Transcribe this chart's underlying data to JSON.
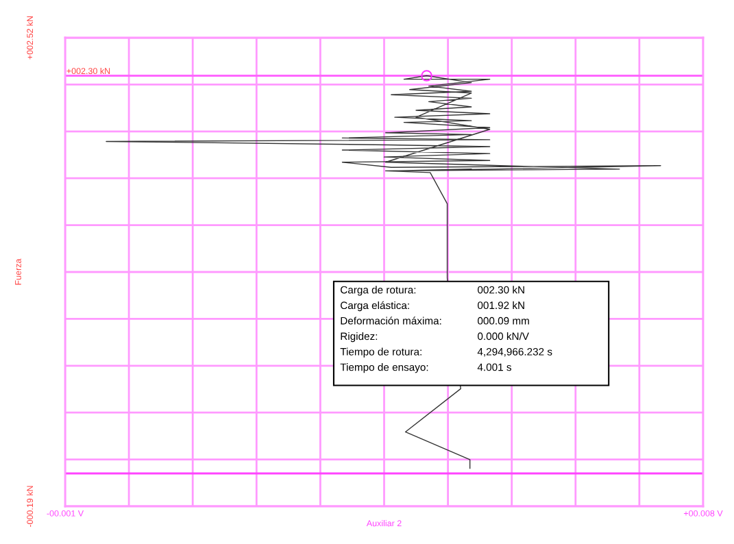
{
  "chart_data": {
    "type": "line",
    "xlabel": "Auxiliar 2",
    "ylabel": "Fuerza",
    "xlim": [
      -0.001,
      0.008
    ],
    "ylim": [
      -0.19,
      2.52
    ],
    "xticks": [
      {
        "value": -0.001,
        "label": "-00.001 V"
      },
      {
        "value": -0.0001,
        "label": null
      },
      {
        "value": 0.0008,
        "label": null
      },
      {
        "value": 0.0017,
        "label": null
      },
      {
        "value": 0.0026,
        "label": null
      },
      {
        "value": 0.0035,
        "label": null
      },
      {
        "value": 0.0044,
        "label": null
      },
      {
        "value": 0.0053,
        "label": null
      },
      {
        "value": 0.0062,
        "label": null
      },
      {
        "value": 0.0071,
        "label": null
      },
      {
        "value": 0.008,
        "label": "+00.008 V"
      }
    ],
    "yticks": [
      {
        "value": -0.19,
        "label": "-000.19 kN"
      },
      {
        "value": 0.081,
        "label": null
      },
      {
        "value": 0.352,
        "label": null
      },
      {
        "value": 0.623,
        "label": null
      },
      {
        "value": 0.894,
        "label": null
      },
      {
        "value": 1.165,
        "label": null
      },
      {
        "value": 1.436,
        "label": null
      },
      {
        "value": 1.707,
        "label": null
      },
      {
        "value": 1.978,
        "label": null
      },
      {
        "value": 2.249,
        "label": null
      },
      {
        "value": 2.52,
        "label": "+002.52 kN"
      }
    ],
    "grid": true,
    "marker": "none",
    "line_style": "solid",
    "series": [
      {
        "color": "#333333",
        "x": [
          0.00471,
          0.00471,
          0.0038,
          0.00458,
          0.00439,
          0.00439,
          0.00415,
          0.00352,
          0.00499,
          0.0074,
          0.0036,
          0.00291,
          0.00499,
          0.0035,
          0.00499,
          0.00291,
          0.00499,
          0.00356,
          -0.00042,
          0.00499,
          0.00291,
          0.00473,
          0.00352,
          0.00499,
          0.00378,
          0.00473,
          0.00365,
          0.00499,
          0.00395,
          0.00473,
          0.00413,
          0.00473,
          0.0036,
          0.00473,
          0.00413,
          0.00499,
          0.00378,
          0.0041,
          0.00473,
          0.00386,
          0.00473,
          0.00395,
          0.00499,
          0.00352,
          0.00682,
          0.0036,
          0.00473
        ],
        "values": [
          0.03,
          0.08,
          0.24,
          0.49,
          1.13,
          1.56,
          1.74,
          1.75,
          1.76,
          1.78,
          1.77,
          1.8,
          1.81,
          1.83,
          1.85,
          1.87,
          1.89,
          1.9,
          1.92,
          1.93,
          1.94,
          1.96,
          1.97,
          2.0,
          2.03,
          2.04,
          2.06,
          2.08,
          2.1,
          2.12,
          2.15,
          2.17,
          2.19,
          2.21,
          2.24,
          2.28,
          2.28,
          2.3,
          2.26,
          2.22,
          2.2,
          2.06,
          1.99,
          1.8,
          1.76,
          1.75,
          1.76
        ]
      },
      {
        "type": "scatter",
        "marker": "circle",
        "color": "#ff33ff",
        "x": [
          0.0041
        ],
        "values": [
          2.3
        ]
      }
    ],
    "ref_lines": [
      {
        "axis": "y",
        "value": 2.3,
        "label": "+002.30 kN",
        "color": "#ff66ff"
      },
      {
        "axis": "y",
        "value": 0,
        "color": "#ff44ff"
      }
    ],
    "annotations": [
      "Carga de rotura:",
      "002.30 kN",
      "Carga elástica:",
      "001.92 kN",
      "Deformación máxima:",
      "000.09 mm",
      "Rigidez:",
      "0.000 kN/V",
      "Tiempo de rotura:",
      "4,294,966.232 s",
      "Tiempo de ensayo:",
      "4.001 s"
    ]
  }
}
